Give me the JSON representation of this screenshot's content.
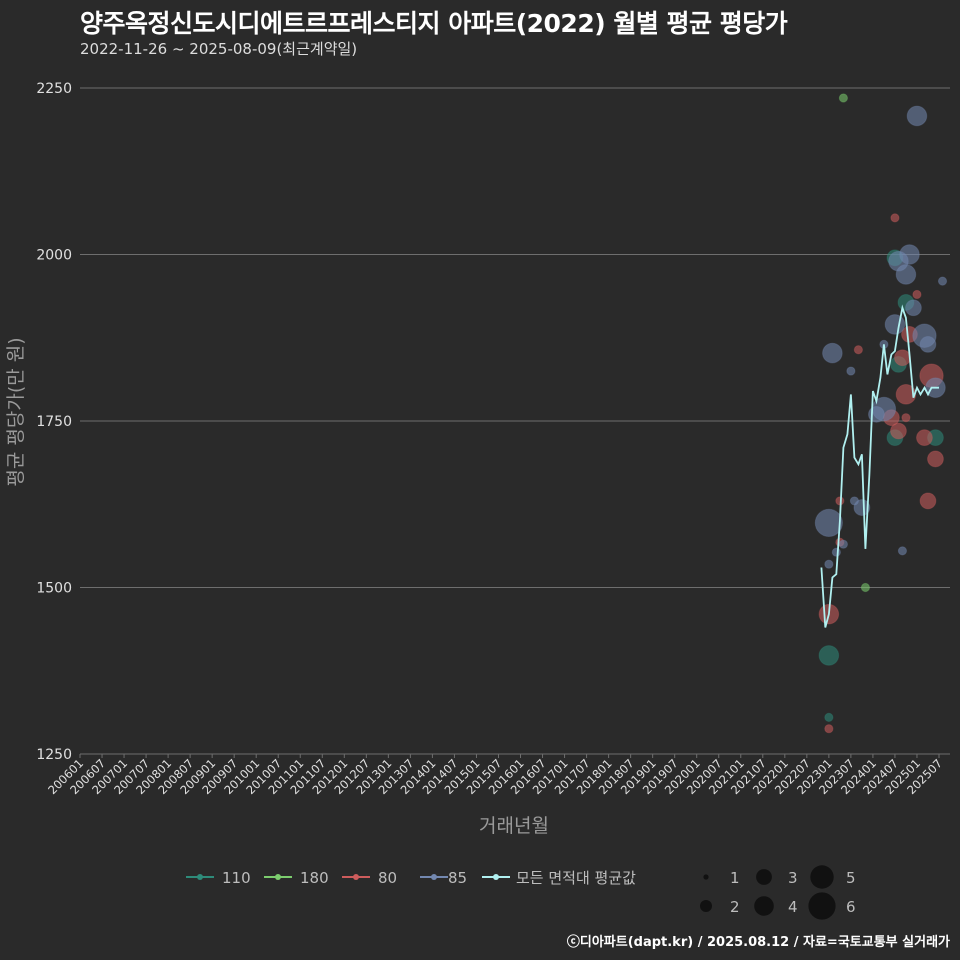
{
  "header": {
    "title": "양주옥정신도시디에트르프레스티지 아파트(2022) 월별 평균 평당가",
    "subtitle": "2022-11-26 ~ 2025-08-09(최근계약일)"
  },
  "footer": "ⓒ디아파트(dapt.kr) / 2025.08.12 / 자료=국토교통부 실거래가",
  "colors": {
    "background": "#2a2a2a",
    "grid": "#6e6e6e",
    "s110": "#2e8b7a",
    "s180": "#7ccd6e",
    "s80": "#cd5c5c",
    "s85": "#7388b0",
    "avg": "#b0f0f0"
  },
  "chart_data": {
    "type": "scatter",
    "title": "양주옥정신도시디에트르프레스티지 아파트(2022) 월별 평균 평당가",
    "xlabel": "거래년월",
    "ylabel": "평균 평당가(만 원)",
    "ylim": [
      1250,
      2250
    ],
    "yticks": [
      1250,
      1500,
      1750,
      2000,
      2250
    ],
    "xlim": [
      2006.0,
      2025.75
    ],
    "xticks": [
      "200601",
      "200607",
      "200701",
      "200707",
      "200801",
      "200807",
      "200901",
      "200907",
      "201001",
      "201007",
      "201101",
      "201107",
      "201201",
      "201207",
      "201301",
      "201307",
      "201401",
      "201407",
      "201501",
      "201507",
      "201601",
      "201607",
      "201701",
      "201707",
      "201801",
      "201807",
      "201901",
      "201907",
      "202001",
      "202007",
      "202101",
      "202107",
      "202201",
      "202207",
      "202301",
      "202307",
      "202401",
      "202407",
      "202501",
      "202507"
    ],
    "legend": {
      "series": [
        {
          "key": "s110",
          "label": "110"
        },
        {
          "key": "s180",
          "label": "180"
        },
        {
          "key": "s80",
          "label": "80"
        },
        {
          "key": "s85",
          "label": "85"
        },
        {
          "key": "avg",
          "label": "모든 면적대 평균값"
        }
      ],
      "sizes": [
        1,
        2,
        3,
        4,
        5,
        6
      ]
    },
    "series": [
      {
        "name": "110",
        "key": "s110",
        "points": [
          {
            "x": 2023.0,
            "y": 1398,
            "n": 4
          },
          {
            "x": 2023.0,
            "y": 1305,
            "n": 1
          },
          {
            "x": 2024.5,
            "y": 1995,
            "n": 3
          },
          {
            "x": 2024.5,
            "y": 1725,
            "n": 3
          },
          {
            "x": 2024.75,
            "y": 1928,
            "n": 3
          },
          {
            "x": 2024.58,
            "y": 1835,
            "n": 3
          },
          {
            "x": 2025.42,
            "y": 1725,
            "n": 3
          }
        ]
      },
      {
        "name": "180",
        "key": "s180",
        "points": [
          {
            "x": 2023.33,
            "y": 2235,
            "n": 1
          },
          {
            "x": 2023.83,
            "y": 1500,
            "n": 1
          }
        ]
      },
      {
        "name": "80",
        "key": "s80",
        "points": [
          {
            "x": 2023.0,
            "y": 1460,
            "n": 4
          },
          {
            "x": 2023.0,
            "y": 1288,
            "n": 1
          },
          {
            "x": 2023.25,
            "y": 1630,
            "n": 1
          },
          {
            "x": 2023.25,
            "y": 1568,
            "n": 1
          },
          {
            "x": 2023.67,
            "y": 1857,
            "n": 1
          },
          {
            "x": 2024.42,
            "y": 1755,
            "n": 3
          },
          {
            "x": 2024.5,
            "y": 2055,
            "n": 1
          },
          {
            "x": 2024.58,
            "y": 1735,
            "n": 3
          },
          {
            "x": 2024.67,
            "y": 1845,
            "n": 3
          },
          {
            "x": 2024.75,
            "y": 1790,
            "n": 4
          },
          {
            "x": 2024.83,
            "y": 1880,
            "n": 3
          },
          {
            "x": 2025.0,
            "y": 1940,
            "n": 1
          },
          {
            "x": 2025.17,
            "y": 1725,
            "n": 3
          },
          {
            "x": 2025.25,
            "y": 1630,
            "n": 3
          },
          {
            "x": 2025.33,
            "y": 1818,
            "n": 5
          },
          {
            "x": 2025.42,
            "y": 1693,
            "n": 3
          },
          {
            "x": 2024.75,
            "y": 1755,
            "n": 1
          }
        ]
      },
      {
        "name": "85",
        "key": "s85",
        "points": [
          {
            "x": 2023.0,
            "y": 1597,
            "n": 6
          },
          {
            "x": 2023.0,
            "y": 1535,
            "n": 1
          },
          {
            "x": 2023.08,
            "y": 1852,
            "n": 4
          },
          {
            "x": 2023.17,
            "y": 1553,
            "n": 1
          },
          {
            "x": 2023.33,
            "y": 1565,
            "n": 1
          },
          {
            "x": 2023.5,
            "y": 1825,
            "n": 1
          },
          {
            "x": 2023.58,
            "y": 1630,
            "n": 1
          },
          {
            "x": 2023.75,
            "y": 1620,
            "n": 3
          },
          {
            "x": 2024.25,
            "y": 1865,
            "n": 1
          },
          {
            "x": 2024.25,
            "y": 1768,
            "n": 5
          },
          {
            "x": 2024.5,
            "y": 1895,
            "n": 4
          },
          {
            "x": 2024.58,
            "y": 1990,
            "n": 4
          },
          {
            "x": 2024.67,
            "y": 1555,
            "n": 1
          },
          {
            "x": 2024.75,
            "y": 1970,
            "n": 4
          },
          {
            "x": 2024.83,
            "y": 2000,
            "n": 4
          },
          {
            "x": 2024.92,
            "y": 1920,
            "n": 3
          },
          {
            "x": 2025.0,
            "y": 2208,
            "n": 4
          },
          {
            "x": 2025.17,
            "y": 1878,
            "n": 5
          },
          {
            "x": 2025.25,
            "y": 1865,
            "n": 3
          },
          {
            "x": 2025.42,
            "y": 1800,
            "n": 4
          },
          {
            "x": 2025.58,
            "y": 1960,
            "n": 1
          },
          {
            "x": 2024.08,
            "y": 1760,
            "n": 3
          }
        ]
      }
    ],
    "avg_series": {
      "name": "모든 면적대 평균값",
      "key": "avg",
      "x": [
        2022.83,
        2022.92,
        2023.0,
        2023.08,
        2023.17,
        2023.25,
        2023.33,
        2023.42,
        2023.5,
        2023.58,
        2023.67,
        2023.75,
        2023.83,
        2023.92,
        2024.0,
        2024.08,
        2024.17,
        2024.25,
        2024.33,
        2024.42,
        2024.5,
        2024.58,
        2024.67,
        2024.75,
        2024.83,
        2024.92,
        2025.0,
        2025.08,
        2025.17,
        2025.25,
        2025.33,
        2025.42,
        2025.5
      ],
      "values": [
        1530,
        1440,
        1460,
        1515,
        1520,
        1600,
        1710,
        1730,
        1790,
        1695,
        1685,
        1700,
        1558,
        1670,
        1795,
        1780,
        1815,
        1865,
        1820,
        1850,
        1855,
        1890,
        1920,
        1905,
        1850,
        1785,
        1800,
        1790,
        1800,
        1790,
        1800,
        1800,
        1800
      ]
    }
  }
}
